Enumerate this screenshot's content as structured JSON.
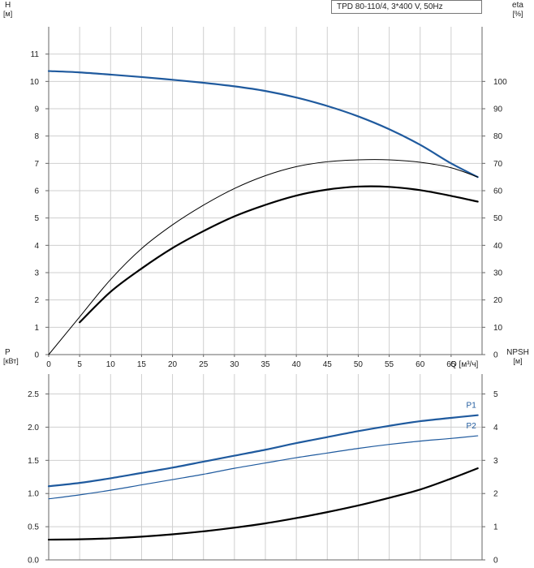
{
  "pump_label": "TPD 80-110/4, 3*400 V, 50Hz",
  "colors": {
    "blue": "#1f5a9e",
    "black": "#000000",
    "grid": "#cfcfcf",
    "axis": "#666666"
  },
  "chart_data": [
    {
      "type": "line",
      "panel": "top",
      "ylabel_left": "H",
      "ylabel_left_unit": "[м]",
      "ylabel_right": "eta",
      "ylabel_right_unit": "[%]",
      "xlabel": "Q [м³/ч]",
      "xlim": [
        0,
        70
      ],
      "ylim_left": [
        0,
        12
      ],
      "ylim_right": [
        0,
        120
      ],
      "grid": true,
      "x_ticks": [
        "0",
        "5",
        "10",
        "15",
        "20",
        "25",
        "30",
        "35",
        "40",
        "45",
        "50",
        "55",
        "60",
        "65"
      ],
      "y_left_ticks": [
        "0",
        "1",
        "2",
        "3",
        "4",
        "5",
        "6",
        "7",
        "8",
        "9",
        "10",
        "11"
      ],
      "y_right_ticks": [
        "0",
        "10",
        "20",
        "30",
        "40",
        "50",
        "60",
        "70",
        "80",
        "90",
        "100"
      ],
      "series": [
        {
          "axis": "left",
          "style": "blue-thick",
          "x": [
            0,
            5,
            10,
            15,
            20,
            25,
            30,
            35,
            40,
            45,
            50,
            55,
            60,
            65,
            69.3
          ],
          "y": [
            10.38,
            10.33,
            10.25,
            10.16,
            10.06,
            9.95,
            9.82,
            9.65,
            9.41,
            9.1,
            8.72,
            8.25,
            7.68,
            7.0,
            6.5
          ]
        },
        {
          "axis": "right",
          "style": "black-thin",
          "x": [
            0,
            5,
            10,
            15,
            20,
            25,
            30,
            35,
            40,
            45,
            50,
            55,
            60,
            65,
            69.3
          ],
          "y": [
            0,
            13.8,
            27.5,
            38.8,
            47.5,
            54.7,
            60.8,
            65.5,
            68.8,
            70.6,
            71.3,
            71.3,
            70.4,
            68.4,
            65.0
          ]
        },
        {
          "axis": "right",
          "style": "black-thick",
          "x": [
            5,
            10,
            15,
            20,
            25,
            30,
            35,
            40,
            45,
            50,
            55,
            60,
            65,
            69.3
          ],
          "y": [
            11.8,
            23.0,
            31.5,
            39.0,
            45.2,
            50.6,
            54.8,
            58.2,
            60.4,
            61.5,
            61.4,
            60.2,
            58.1,
            56.0
          ]
        }
      ]
    },
    {
      "type": "line",
      "panel": "bottom",
      "ylabel_left": "P",
      "ylabel_left_unit": "[кВт]",
      "ylabel_right": "NPSH",
      "ylabel_right_unit": "[м]",
      "xlim": [
        0,
        70
      ],
      "ylim_left": [
        0,
        2.8
      ],
      "ylim_right": [
        0,
        5.6
      ],
      "grid": true,
      "y_left_ticks": [
        "0.0",
        "0.5",
        "1.0",
        "1.5",
        "2.0",
        "2.5"
      ],
      "y_right_ticks": [
        "0",
        "1",
        "2",
        "3",
        "4",
        "5"
      ],
      "series": [
        {
          "name": "P1",
          "axis": "left",
          "style": "blue-thick",
          "x": [
            0,
            5,
            10,
            15,
            20,
            25,
            30,
            35,
            40,
            45,
            50,
            55,
            60,
            65,
            69.3
          ],
          "y": [
            1.11,
            1.16,
            1.23,
            1.31,
            1.39,
            1.48,
            1.57,
            1.66,
            1.76,
            1.85,
            1.94,
            2.02,
            2.09,
            2.14,
            2.18
          ]
        },
        {
          "name": "P2",
          "axis": "left",
          "style": "blue-thin",
          "x": [
            0,
            5,
            10,
            15,
            20,
            25,
            30,
            35,
            40,
            45,
            50,
            55,
            60,
            65,
            69.3
          ],
          "y": [
            0.92,
            0.98,
            1.05,
            1.13,
            1.21,
            1.29,
            1.38,
            1.46,
            1.54,
            1.61,
            1.68,
            1.74,
            1.79,
            1.83,
            1.87
          ]
        },
        {
          "axis": "right",
          "style": "black-thick",
          "x": [
            0,
            5,
            10,
            15,
            20,
            25,
            30,
            35,
            40,
            45,
            50,
            55,
            60,
            65,
            69.3
          ],
          "y": [
            0.61,
            0.62,
            0.65,
            0.7,
            0.77,
            0.86,
            0.97,
            1.1,
            1.26,
            1.44,
            1.64,
            1.87,
            2.12,
            2.45,
            2.76
          ]
        }
      ]
    }
  ]
}
